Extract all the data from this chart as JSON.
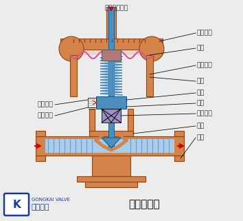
{
  "title": "气动薄膜阀",
  "bg_color": "#ececec",
  "vc": "#D4844A",
  "ve": "#8B4513",
  "sc": "#4A8FC0",
  "fc": "#A8CCE8",
  "sl": "#9B8EC4",
  "ac": "#CC0000",
  "lc": "#333333",
  "logo_blue": "#1A3A9A",
  "labels": {
    "top": "压力信号入口",
    "upper_chamber": "膜室上腔",
    "diaphragm": "膜片",
    "lower_chamber": "膜室下腔",
    "spring": "弹簧",
    "push_rod": "推杆",
    "valve_stem": "阀杆",
    "seal": "密封填料",
    "valve_core": "阀芯",
    "valve_seat": "阀座",
    "travel_indicator": "行程指针",
    "travel_scale": "行程刻度"
  },
  "company": "工开阀门",
  "company_sub": "GONGKAI VALVE",
  "title_main": "气动薄膜阀"
}
